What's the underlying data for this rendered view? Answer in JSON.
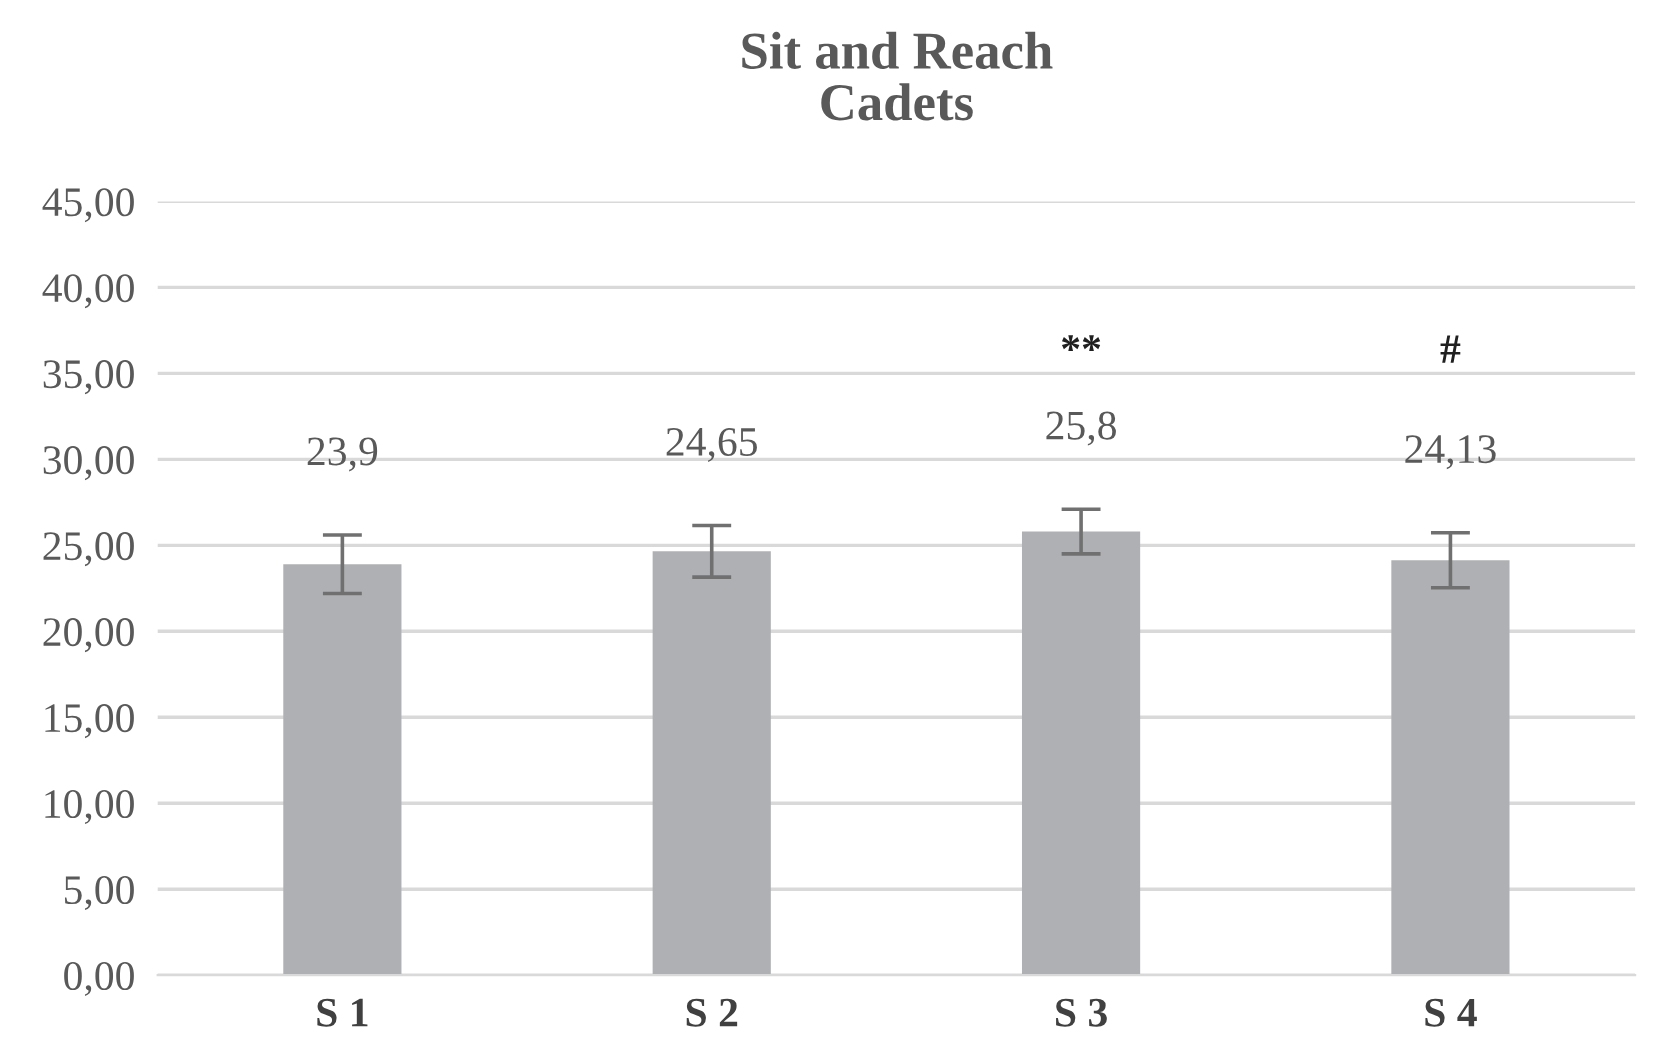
{
  "chart_data": {
    "type": "bar",
    "title": "Sit and Reach\nCadets",
    "categories": [
      "S 1",
      "S 2",
      "S 3",
      "S 4"
    ],
    "values": [
      23.9,
      24.65,
      25.8,
      24.13
    ],
    "errors": [
      1.7,
      1.5,
      1.3,
      1.6
    ],
    "value_labels": [
      "23,9",
      "24,65",
      "25,8",
      "24,13"
    ],
    "color": "#afb0b3",
    "ylim": [
      0,
      45
    ],
    "yticks": [
      {
        "value": 0,
        "label": "0,00"
      },
      {
        "value": 5,
        "label": "5,00"
      },
      {
        "value": 10,
        "label": "10,00"
      },
      {
        "value": 15,
        "label": "15,00"
      },
      {
        "value": 20,
        "label": "20,00"
      },
      {
        "value": 25,
        "label": "25,00"
      },
      {
        "value": 30,
        "label": "30,00"
      },
      {
        "value": 35,
        "label": "35,00"
      },
      {
        "value": 40,
        "label": "40,00"
      },
      {
        "value": 45,
        "label": "45,00"
      }
    ],
    "grid": "y",
    "annotations": [
      "**",
      "#"
    ]
  }
}
